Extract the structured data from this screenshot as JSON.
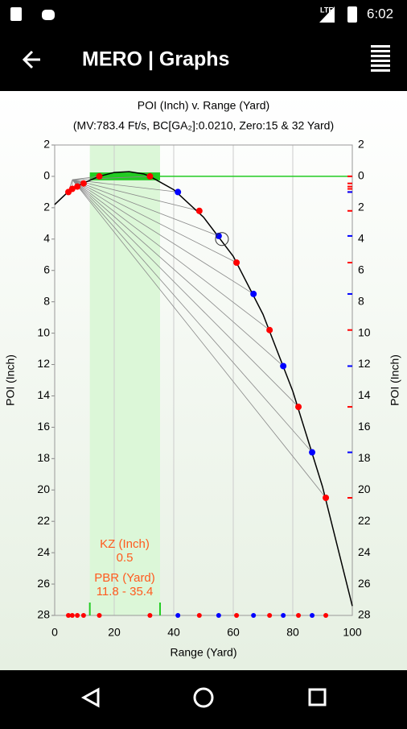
{
  "status_bar": {
    "network": "LTE",
    "time": "6:02"
  },
  "app_bar": {
    "title": "MERO | Graphs"
  },
  "chart_data": {
    "type": "line",
    "title": "POI (Inch) v. Range (Yard)",
    "subtitle": "(MV:783.4 Ft/s, BC[GA₂]:0.0210, Zero:15 & 32 Yard)",
    "x_label": "Range (Yard)",
    "y_label": "POI (Inch)",
    "y2_label": "POI (Inch)",
    "xlim": [
      0,
      100
    ],
    "xticks": [
      0,
      20,
      40,
      60,
      80,
      100
    ],
    "ylim": [
      -2,
      28
    ],
    "y_inverted": true,
    "yticks": [
      {
        "value": -2,
        "label": "2"
      },
      0,
      2,
      4,
      6,
      8,
      10,
      12,
      14,
      16,
      18,
      20,
      22,
      24,
      26,
      28
    ],
    "grid": "x",
    "series": [
      {
        "color": "#000000",
        "x": [
          0,
          5,
          10,
          15,
          20,
          25,
          30,
          32,
          40,
          50,
          60,
          70,
          80,
          90,
          100
        ],
        "values": [
          1.8,
          0.9,
          0.4,
          0,
          -0.25,
          -0.3,
          -0.15,
          0,
          0.85,
          2.6,
          5.1,
          8.8,
          13.7,
          19.8,
          27.4
        ]
      },
      {
        "color": "#ff0000",
        "markers": true,
        "x": [
          4.6,
          5.9,
          7.6,
          9.7,
          15,
          32,
          48.6,
          61.1,
          72.2,
          81.9,
          91.1
        ],
        "values": [
          1.0,
          0.8,
          0.65,
          0.45,
          0,
          0,
          2.2,
          5.5,
          9.8,
          14.7,
          20.5
        ]
      },
      {
        "color": "#0000ff",
        "markers": true,
        "x": [
          41.4,
          55.1,
          66.8,
          76.8,
          86.5
        ],
        "values": [
          1.0,
          3.8,
          7.5,
          12.1,
          17.6
        ]
      }
    ],
    "highlight": {
      "x": 56.2,
      "y": 4.0
    },
    "kill_zone": {
      "title": "KZ (Inch)",
      "value": 0.5,
      "label": "0.5"
    },
    "pbr": {
      "title": "PBR (Yard)",
      "values": [
        11.8,
        35.4
      ],
      "label": "11.8 - 35.4"
    }
  }
}
